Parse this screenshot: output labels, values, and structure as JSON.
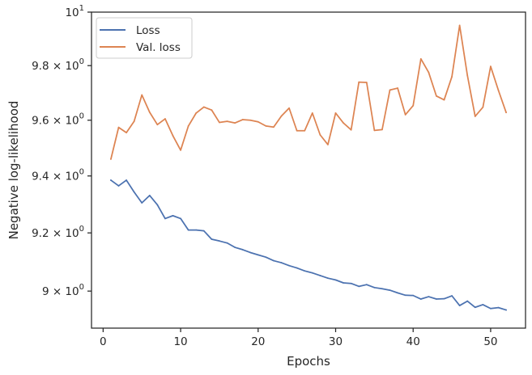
{
  "chart_data": {
    "type": "line",
    "xlabel": "Epochs",
    "ylabel": "Negative log-likelihood",
    "xlim": [
      -1.5,
      54.5
    ],
    "ylim": [
      8.875,
      10.0
    ],
    "yscale": "log",
    "grid": false,
    "legend_position": "top-left",
    "x_ticks": [
      0,
      10,
      20,
      30,
      40,
      50
    ],
    "x_tick_labels": [
      "0",
      "10",
      "20",
      "30",
      "40",
      "50"
    ],
    "y_ticks": [
      9.0,
      9.2,
      9.4,
      9.6,
      9.8,
      10.0
    ],
    "y_tick_labels": [
      {
        "base": "9 × 10",
        "exp": "0"
      },
      {
        "base": "9.2 × 10",
        "exp": "0"
      },
      {
        "base": "9.4 × 10",
        "exp": "0"
      },
      {
        "base": "9.6 × 10",
        "exp": "0"
      },
      {
        "base": "9.8 × 10",
        "exp": "0"
      },
      {
        "base": "10",
        "exp": "1"
      }
    ],
    "x": [
      1,
      2,
      3,
      4,
      5,
      6,
      7,
      8,
      9,
      10,
      11,
      12,
      13,
      14,
      15,
      16,
      17,
      18,
      19,
      20,
      21,
      22,
      23,
      24,
      25,
      26,
      27,
      28,
      29,
      30,
      31,
      32,
      33,
      34,
      35,
      36,
      37,
      38,
      39,
      40,
      41,
      42,
      43,
      44,
      45,
      46,
      47,
      48,
      49,
      50,
      51,
      52
    ],
    "series": [
      {
        "name": "Loss",
        "color": "#4c72b0",
        "values": [
          9.385,
          9.365,
          9.385,
          9.343,
          9.305,
          9.331,
          9.298,
          9.25,
          9.26,
          9.25,
          9.21,
          9.21,
          9.207,
          9.178,
          9.172,
          9.165,
          9.15,
          9.142,
          9.132,
          9.124,
          9.116,
          9.104,
          9.097,
          9.087,
          9.079,
          9.069,
          9.062,
          9.053,
          9.044,
          9.038,
          9.028,
          9.026,
          9.016,
          9.022,
          9.012,
          9.008,
          9.003,
          8.994,
          8.986,
          8.985,
          8.973,
          8.981,
          8.973,
          8.974,
          8.984,
          8.951,
          8.966,
          8.945,
          8.954,
          8.941,
          8.944,
          8.936
        ]
      },
      {
        "name": "Val. loss",
        "color": "#dd8452",
        "values": [
          9.46,
          9.574,
          9.555,
          9.596,
          9.692,
          9.629,
          9.584,
          9.605,
          9.544,
          9.492,
          9.579,
          9.626,
          9.648,
          9.637,
          9.592,
          9.596,
          9.59,
          9.602,
          9.6,
          9.594,
          9.579,
          9.575,
          9.615,
          9.644,
          9.562,
          9.562,
          9.626,
          9.547,
          9.512,
          9.626,
          9.59,
          9.565,
          9.739,
          9.738,
          9.563,
          9.566,
          9.71,
          9.717,
          9.62,
          9.653,
          9.825,
          9.775,
          9.688,
          9.674,
          9.759,
          9.95,
          9.764,
          9.614,
          9.647,
          9.797,
          9.709,
          9.628
        ]
      }
    ]
  }
}
